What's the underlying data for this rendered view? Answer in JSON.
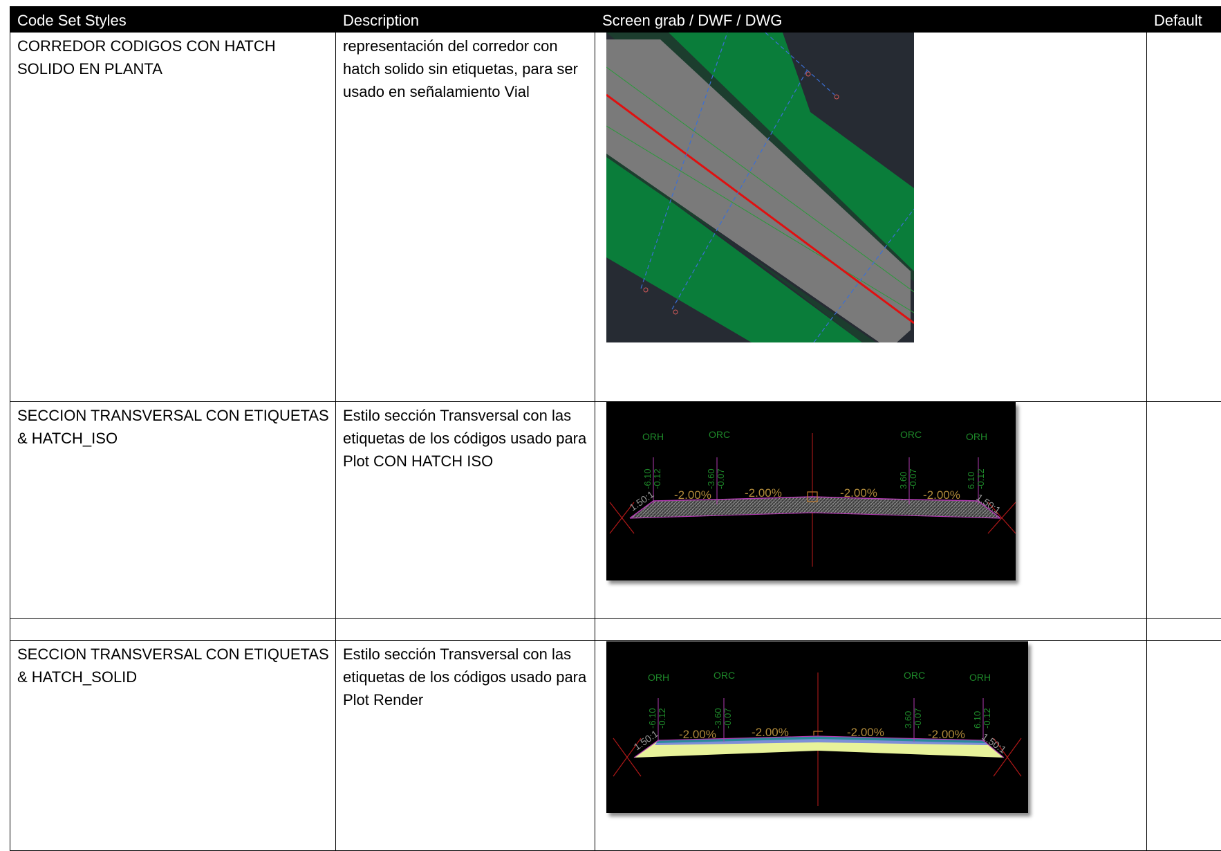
{
  "header": {
    "col1": "Code Set Styles",
    "col2": "Description",
    "col3": "Screen grab / DWF / DWG",
    "col4": "Default"
  },
  "rows": [
    {
      "style": "CORREDOR CODIGOS CON HATCH SOLIDO EN PLANTA",
      "description": "representación del corredor con hatch solido sin etiquetas, para ser usado en señalamiento Vial",
      "default": ""
    },
    {
      "style": "SECCION TRANSVERSAL CON ETIQUETAS & HATCH_ISO",
      "description": "Estilo sección Transversal con las etiquetas de los códigos usado para Plot CON HATCH ISO",
      "default": "",
      "labels": {
        "orh_left": "ORH",
        "orc_left": "ORC",
        "orc_right": "ORC",
        "orh_right": "ORH",
        "off1": "-6.10",
        "el1": "-0.12",
        "off2": "-3.60",
        "el2": "-0.07",
        "off3": "3.60",
        "el3": "-0.07",
        "off4": "6.10",
        "el4": "-0.12",
        "slope_left": "1.50:1",
        "slope_right": "1.50:1",
        "g1": "-2.00%",
        "g2": "-2.00%",
        "g3": "-2.00%",
        "g4": "-2.00%"
      }
    },
    {
      "style": "",
      "description": "",
      "default": ""
    },
    {
      "style": "SECCION TRANSVERSAL CON ETIQUETAS & HATCH_SOLID",
      "description": "Estilo sección Transversal con las etiquetas de los códigos usado para Plot Render",
      "default": "",
      "labels": {
        "orh_left": "ORH",
        "orc_left": "ORC",
        "orc_right": "ORC",
        "orh_right": "ORH",
        "off1": "-6.10",
        "el1": "-0.12",
        "off2": "-3.60",
        "el2": "-0.07",
        "off3": "3.60",
        "el3": "-0.07",
        "off4": "6.10",
        "el4": "-0.12",
        "slope_left": "1.50:1",
        "slope_right": "1.50:1",
        "g1": "-2.00%",
        "g2": "-2.00%",
        "g3": "-2.00%",
        "g4": "-2.00%"
      }
    }
  ],
  "colors": {
    "cad_background": "#000000",
    "plan_background": "#262b33",
    "verge_green": "#0a7d3a",
    "road_gray": "#7a7a7a",
    "centerline_red": "#e01010",
    "station_blue": "#3b6fd6",
    "label_green": "#1e8a2a",
    "label_orange": "#b08a3a",
    "hatch_gray": "#8a8a8a",
    "layer_yellow": "#e8f29a",
    "layer_blue": "#7d8ed8"
  }
}
